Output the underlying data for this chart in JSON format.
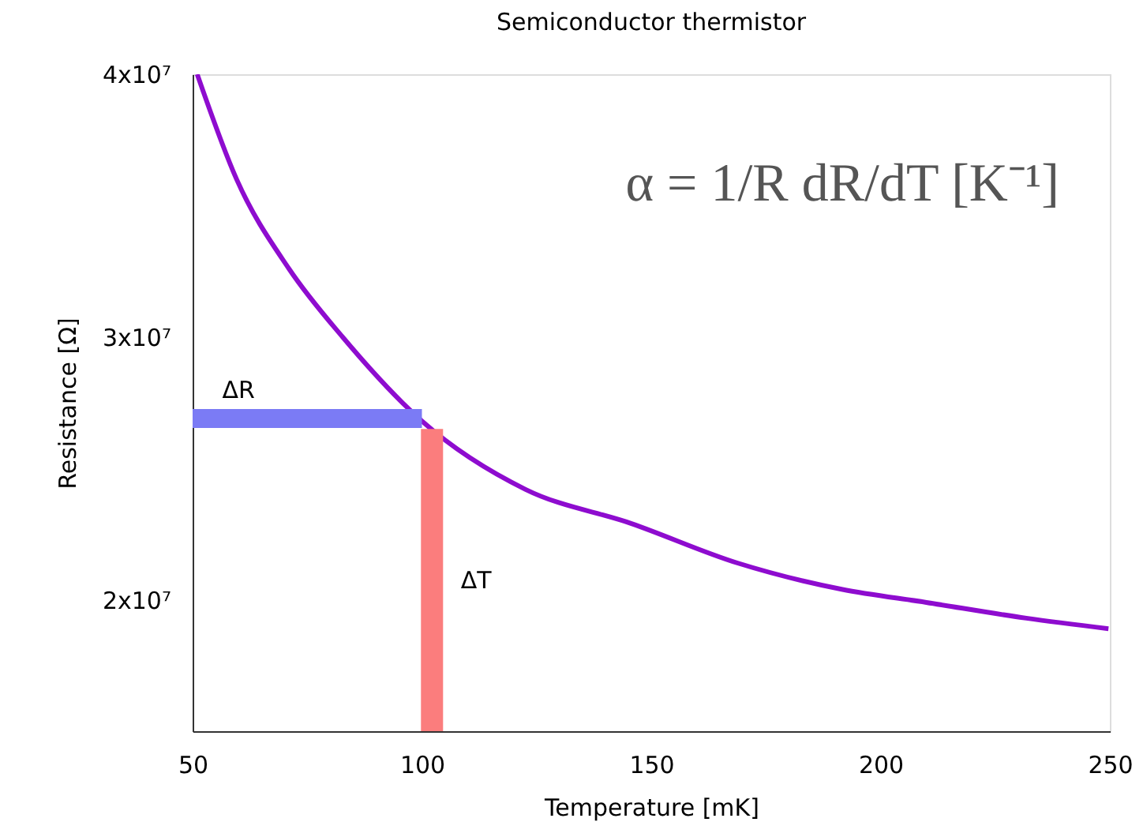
{
  "chart_data": {
    "type": "line",
    "title": "Semiconductor thermistor",
    "xlabel": "Temperature [mK]",
    "ylabel": "Resistance [Ω]",
    "xlim": [
      50,
      250
    ],
    "xticks": [
      50,
      100,
      150,
      200,
      250
    ],
    "ylim": [
      15000000,
      40000000
    ],
    "yticks": [
      {
        "value": 20000000,
        "label": "2x10⁷"
      },
      {
        "value": 30000000,
        "label": "3x10⁷"
      },
      {
        "value": 40000000,
        "label": "4x10⁷"
      }
    ],
    "grid": false,
    "series": [
      {
        "color": "#8e0ccf",
        "x": [
          51,
          59.6,
          71,
          82.7,
          100,
          122.6,
          145.7,
          168.8,
          191.5,
          210,
          231.8,
          249.7
        ],
        "values": [
          40000000,
          36000000,
          32600000,
          30000000,
          26800000,
          24200000,
          22900000,
          21400000,
          20400000,
          19900000,
          19300000,
          18900000
        ]
      },
      {
        "name": "ΔR",
        "color": "#7b7bf5",
        "x": [
          50,
          100
        ],
        "values": [
          26900000,
          26900000
        ]
      },
      {
        "name": "ΔT",
        "color": "#fb7d7d",
        "x": [
          102.2,
          102.2
        ],
        "values": [
          15000000,
          26500000
        ]
      }
    ],
    "annotations": [
      "α = 1/R dR/dT [K⁻¹]"
    ]
  }
}
